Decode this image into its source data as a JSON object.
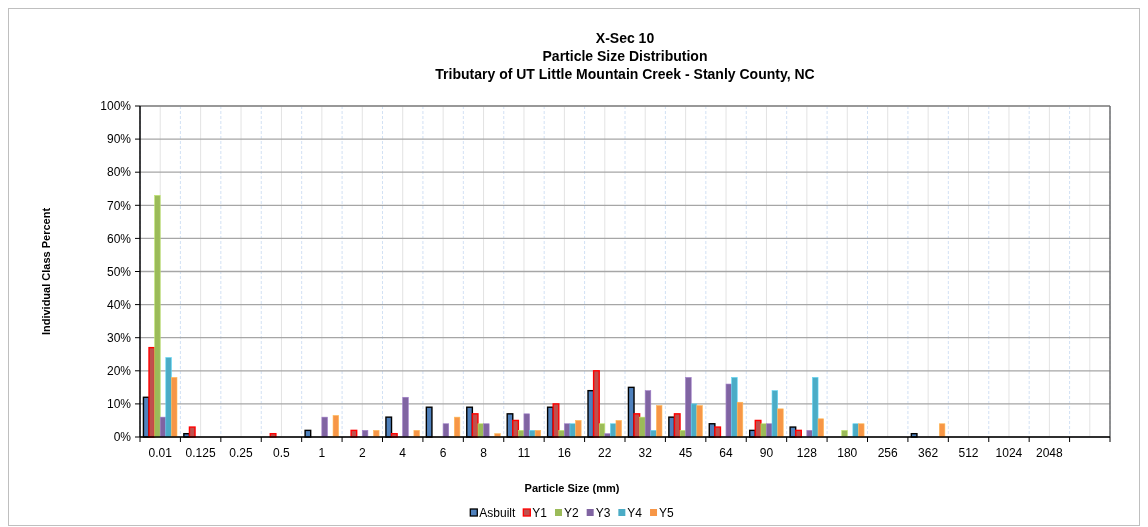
{
  "chart_data": {
    "type": "bar",
    "title": "X-Sec 10\nParticle Size Distribution\nTributary of UT Little Mountain Creek - Stanly County, NC",
    "xlabel": "Particle Size (mm)",
    "ylabel": "Individual Class Percent",
    "categories": [
      "0.01",
      "0.125",
      "0.25",
      "0.5",
      "1",
      "2",
      "4",
      "6",
      "8",
      "11",
      "16",
      "22",
      "32",
      "45",
      "64",
      "90",
      "128",
      "180",
      "256",
      "362",
      "512",
      "1024",
      "2048",
      null
    ],
    "series": [
      {
        "name": "Asbuilt",
        "color": "#4f81bd",
        "values": [
          12,
          1,
          0,
          0,
          2,
          0,
          6,
          9,
          9,
          7,
          9,
          14,
          15,
          6,
          4,
          2,
          3,
          0,
          0,
          1,
          0,
          0,
          0,
          0
        ]
      },
      {
        "name": "Y1",
        "color": "#c0504d",
        "values": [
          27,
          3,
          0,
          1,
          0,
          2,
          1,
          0,
          7,
          5,
          10,
          20,
          7,
          7,
          3,
          5,
          2,
          0,
          0,
          0,
          0,
          0,
          0,
          0
        ]
      },
      {
        "name": "Y2",
        "color": "#9bbb59",
        "values": [
          73,
          0,
          0,
          0,
          0,
          0,
          0,
          0,
          4,
          2,
          2,
          4,
          6,
          2,
          0,
          4,
          0,
          2,
          0,
          0,
          0,
          0,
          0,
          0
        ]
      },
      {
        "name": "Y3",
        "color": "#8064a2",
        "values": [
          6,
          0,
          0,
          0,
          6,
          2,
          12,
          4,
          4,
          7,
          4,
          1,
          14,
          18,
          16,
          4,
          2,
          0,
          0,
          0,
          0,
          0,
          0,
          0
        ]
      },
      {
        "name": "Y4",
        "color": "#4bacc6",
        "values": [
          24,
          0,
          0,
          0,
          0,
          0,
          0,
          0,
          0,
          2,
          4,
          4,
          2,
          10,
          18,
          14,
          18,
          4,
          0,
          0,
          0,
          0,
          0,
          0
        ]
      },
      {
        "name": "Y5",
        "color": "#f79646",
        "values": [
          18,
          0,
          0,
          0,
          6.5,
          2,
          2,
          6,
          1,
          2,
          5,
          5,
          9.5,
          9.5,
          10.5,
          8.5,
          5.5,
          4,
          0,
          4,
          0,
          0,
          0,
          0
        ]
      }
    ],
    "ylim": [
      0,
      100
    ],
    "yticks": [
      {
        "value": 0,
        "label": "0%"
      },
      {
        "value": 10,
        "label": "10%"
      },
      {
        "value": 20,
        "label": "20%"
      },
      {
        "value": 30,
        "label": "30%"
      },
      {
        "value": 40,
        "label": "40%"
      },
      {
        "value": 50,
        "label": "50%"
      },
      {
        "value": 60,
        "label": "60%"
      },
      {
        "value": 70,
        "label": "70%"
      },
      {
        "value": 80,
        "label": "80%"
      },
      {
        "value": 90,
        "label": "90%"
      },
      {
        "value": 100,
        "label": "100%"
      }
    ],
    "grid": true,
    "legend": "bottom"
  }
}
